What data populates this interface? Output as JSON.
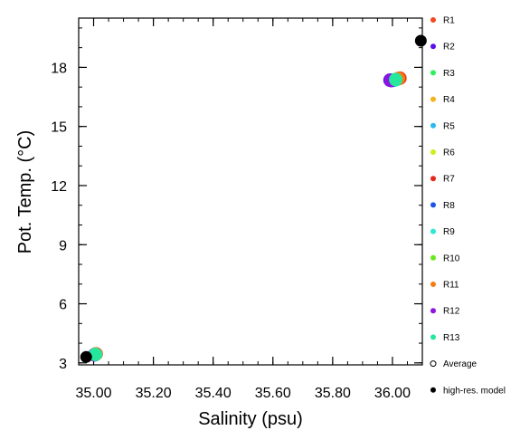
{
  "chart_data": {
    "type": "scatter",
    "xlabel": "Salinity (psu)",
    "ylabel": "Pot. Temp. (°C)",
    "xlim": [
      34.95,
      36.1
    ],
    "ylim": [
      2.9,
      20.5
    ],
    "xticks": [
      35.0,
      35.2,
      35.4,
      35.6,
      35.8,
      36.0
    ],
    "xtick_labels": [
      "35.00",
      "35.20",
      "35.40",
      "35.60",
      "35.80",
      "36.00"
    ],
    "yticks": [
      3,
      6,
      9,
      12,
      15,
      18
    ],
    "ytick_labels": [
      "3",
      "6",
      "9",
      "12",
      "15",
      "18"
    ],
    "x_minor_step": 0.05,
    "y_minor_step": 1,
    "grid": false,
    "legend_position": "right",
    "series": [
      {
        "name": "R1",
        "color": "#f24a1f",
        "marker": "filled-circle",
        "points": [
          [
            36.025,
            17.45
          ],
          [
            35.008,
            3.45
          ]
        ]
      },
      {
        "name": "R2",
        "color": "#5b10e8",
        "marker": "filled-circle",
        "points": [
          [
            35.992,
            17.35
          ],
          [
            35.004,
            3.42
          ]
        ]
      },
      {
        "name": "R3",
        "color": "#2ef05e",
        "marker": "filled-circle",
        "points": [
          [
            36.012,
            17.38
          ],
          [
            35.006,
            3.44
          ]
        ]
      },
      {
        "name": "R4",
        "color": "#f5b21c",
        "marker": "filled-circle",
        "points": [
          [
            36.018,
            17.42
          ],
          [
            35.007,
            3.45
          ]
        ]
      },
      {
        "name": "R5",
        "color": "#2fb8ee",
        "marker": "filled-circle",
        "points": [
          [
            36.008,
            17.36
          ],
          [
            35.005,
            3.43
          ]
        ]
      },
      {
        "name": "R6",
        "color": "#c8f01a",
        "marker": "filled-circle",
        "points": [
          [
            36.015,
            17.4
          ],
          [
            35.006,
            3.44
          ]
        ]
      },
      {
        "name": "R7",
        "color": "#e8261a",
        "marker": "filled-circle",
        "points": [
          [
            36.022,
            17.44
          ],
          [
            35.008,
            3.46
          ]
        ]
      },
      {
        "name": "R8",
        "color": "#1c55e6",
        "marker": "filled-circle",
        "points": [
          [
            36.0,
            17.34
          ],
          [
            35.004,
            3.42
          ]
        ]
      },
      {
        "name": "R9",
        "color": "#2ee8d2",
        "marker": "filled-circle",
        "points": [
          [
            36.01,
            17.37
          ],
          [
            35.005,
            3.43
          ]
        ]
      },
      {
        "name": "R10",
        "color": "#68e81e",
        "marker": "filled-circle",
        "points": [
          [
            36.014,
            17.4
          ],
          [
            35.006,
            3.44
          ]
        ]
      },
      {
        "name": "R11",
        "color": "#f57d14",
        "marker": "filled-circle",
        "points": [
          [
            36.02,
            17.43
          ],
          [
            35.007,
            3.45
          ]
        ]
      },
      {
        "name": "R12",
        "color": "#8e14e0",
        "marker": "filled-circle",
        "points": [
          [
            35.995,
            17.33
          ],
          [
            35.003,
            3.41
          ]
        ]
      },
      {
        "name": "R13",
        "color": "#26e89c",
        "marker": "filled-circle",
        "points": [
          [
            36.011,
            17.38
          ],
          [
            35.006,
            3.43
          ]
        ]
      },
      {
        "name": "Average",
        "color": "#000000",
        "marker": "open-circle",
        "points": []
      },
      {
        "name": "high-res. model",
        "color": "#000000",
        "marker": "filled-circle",
        "points": [
          [
            36.095,
            19.35
          ],
          [
            34.975,
            3.3
          ]
        ]
      }
    ]
  }
}
